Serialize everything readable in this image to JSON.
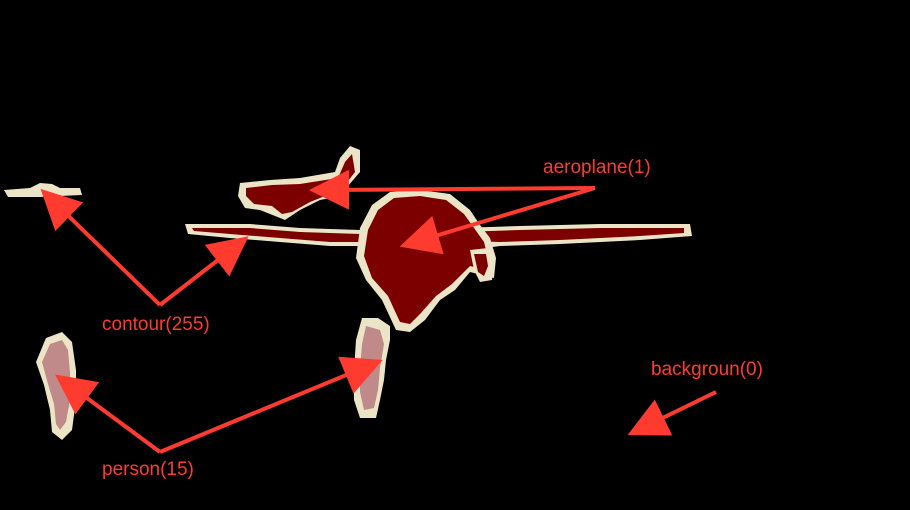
{
  "labels": {
    "aeroplane": "aeroplane(1)",
    "contour": "contour(255)",
    "person": "person(15)",
    "background": "backgroun(0)"
  },
  "colors": {
    "background": "#000000",
    "contour": "#ece4c6",
    "aeroplane": "#7d0000",
    "person": "#c08a8a",
    "arrow": "#ff3b30"
  }
}
